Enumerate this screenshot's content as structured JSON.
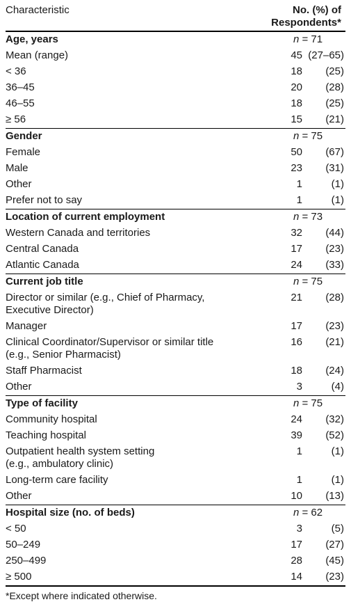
{
  "header": {
    "characteristic_label": "Characteristic",
    "value_label_line1": "No. (%) of",
    "value_label_line2": "Respondents*"
  },
  "sections": [
    {
      "title": "Age, years",
      "n_prefix": "n",
      "n_value": " = 71",
      "rows": [
        {
          "label": [
            "Mean (range)"
          ],
          "count": "45",
          "pct": "(27–65)"
        },
        {
          "label": [
            "< 36"
          ],
          "count": "18",
          "pct": "(25)"
        },
        {
          "label": [
            "36–45"
          ],
          "count": "20",
          "pct": "(28)"
        },
        {
          "label": [
            "46–55"
          ],
          "count": "18",
          "pct": "(25)"
        },
        {
          "label": [
            "≥ 56"
          ],
          "count": "15",
          "pct": "(21)"
        }
      ]
    },
    {
      "title": "Gender",
      "n_prefix": "n",
      "n_value": " = 75",
      "rows": [
        {
          "label": [
            "Female"
          ],
          "count": "50",
          "pct": "(67)"
        },
        {
          "label": [
            "Male"
          ],
          "count": "23",
          "pct": "(31)"
        },
        {
          "label": [
            "Other"
          ],
          "count": "1",
          "pct": "(1)"
        },
        {
          "label": [
            "Prefer not to say"
          ],
          "count": "1",
          "pct": "(1)"
        }
      ]
    },
    {
      "title": "Location of current employment",
      "n_prefix": "n",
      "n_value": " = 73",
      "rows": [
        {
          "label": [
            "Western Canada and territories"
          ],
          "count": "32",
          "pct": "(44)"
        },
        {
          "label": [
            "Central Canada"
          ],
          "count": "17",
          "pct": "(23)"
        },
        {
          "label": [
            "Atlantic Canada"
          ],
          "count": "24",
          "pct": "(33)"
        }
      ]
    },
    {
      "title": "Current job title",
      "n_prefix": "n",
      "n_value": " = 75",
      "rows": [
        {
          "label": [
            "Director or similar (e.g., Chief of Pharmacy,",
            "Executive Director)"
          ],
          "count": "21",
          "pct": "(28)"
        },
        {
          "label": [
            "Manager"
          ],
          "count": "17",
          "pct": "(23)"
        },
        {
          "label": [
            "Clinical Coordinator/Supervisor or similar title",
            "(e.g., Senior Pharmacist)"
          ],
          "count": "16",
          "pct": "(21)"
        },
        {
          "label": [
            "Staff Pharmacist"
          ],
          "count": "18",
          "pct": "(24)"
        },
        {
          "label": [
            "Other"
          ],
          "count": "3",
          "pct": "(4)"
        }
      ]
    },
    {
      "title": "Type of facility",
      "n_prefix": "n",
      "n_value": " = 75",
      "rows": [
        {
          "label": [
            "Community hospital"
          ],
          "count": "24",
          "pct": "(32)"
        },
        {
          "label": [
            "Teaching hospital"
          ],
          "count": "39",
          "pct": "(52)"
        },
        {
          "label": [
            "Outpatient health system setting",
            "(e.g., ambulatory clinic)"
          ],
          "count": "1",
          "pct": "(1)"
        },
        {
          "label": [
            "Long-term care facility"
          ],
          "count": "1",
          "pct": "(1)"
        },
        {
          "label": [
            "Other"
          ],
          "count": "10",
          "pct": "(13)"
        }
      ]
    },
    {
      "title": "Hospital size (no. of beds)",
      "n_prefix": "n",
      "n_value": " = 62",
      "rows": [
        {
          "label": [
            "< 50"
          ],
          "count": "3",
          "pct": "(5)"
        },
        {
          "label": [
            "50–249"
          ],
          "count": "17",
          "pct": "(27)"
        },
        {
          "label": [
            "250–499"
          ],
          "count": "28",
          "pct": "(45)"
        },
        {
          "label": [
            "≥ 500"
          ],
          "count": "14",
          "pct": "(23)"
        }
      ]
    }
  ],
  "footnote": "*Except where indicated otherwise."
}
